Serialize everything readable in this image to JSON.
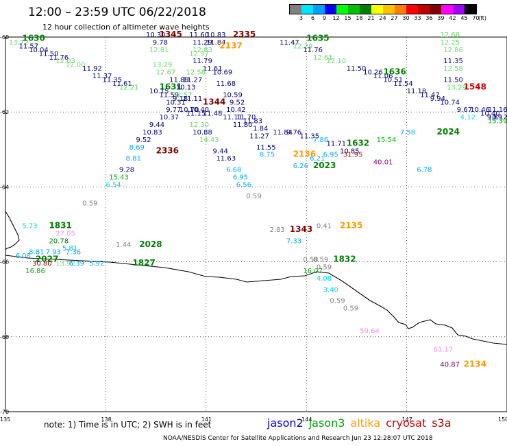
{
  "header": {
    "title": "12:00 – 23:59 UTC 06/22/2018",
    "subtitle": "12 hour collection of altimeter wave heights"
  },
  "legend": {
    "unit": "(ft)",
    "bins": [
      {
        "label": "3",
        "color": "#808080"
      },
      {
        "label": "6",
        "color": "#00e5ff"
      },
      {
        "label": "9",
        "color": "#00a0ff"
      },
      {
        "label": "12",
        "color": "#0000ff"
      },
      {
        "label": "15",
        "color": "#00ff00"
      },
      {
        "label": "18",
        "color": "#00c000"
      },
      {
        "label": "21",
        "color": "#008000"
      },
      {
        "label": "24",
        "color": "#ffff00"
      },
      {
        "label": "27",
        "color": "#ffc000"
      },
      {
        "label": "30",
        "color": "#ff8000"
      },
      {
        "label": "33",
        "color": "#ff0000"
      },
      {
        "label": "36",
        "color": "#c00000"
      },
      {
        "label": "39",
        "color": "#800000"
      },
      {
        "label": "42",
        "color": "#ff00ff"
      },
      {
        "label": "45",
        "color": "#a000ff"
      },
      {
        "label": "70",
        "color": "#000000"
      }
    ]
  },
  "axes": {
    "lon_ticks": [
      "135",
      "138",
      "141",
      "144",
      "147",
      "150"
    ],
    "lat_ticks": [
      "-60",
      "-62",
      "-64",
      "-66",
      "-68",
      "-70"
    ]
  },
  "note": "note: 1) Time is in UTC; 2) SWH is in feet",
  "satellites": [
    {
      "name": "jason2",
      "color": "#0000cc"
    },
    {
      "name": "jason3",
      "color": "#00a000"
    },
    {
      "name": "altika",
      "color": "#ff9900"
    },
    {
      "name": "cryosat",
      "color": "#cc0000"
    },
    {
      "name": "s3a",
      "color": "#990000"
    }
  ],
  "credit": "NOAA/NESDIS Center for Satellite Applications and Research    Jun 23 12:28:07 UTC 2018",
  "observations": [
    {
      "lon": 135.1,
      "lat": -60.2,
      "text": "13.72",
      "color": "#66dd66"
    },
    {
      "lon": 135.5,
      "lat": -60.1,
      "text": "1630",
      "color": "#008000",
      "bold": true
    },
    {
      "lon": 135.4,
      "lat": -60.3,
      "text": "11.57",
      "color": "#000080"
    },
    {
      "lon": 135.7,
      "lat": -60.4,
      "text": "10.04",
      "color": "#000080"
    },
    {
      "lon": 136.0,
      "lat": -60.5,
      "text": "11.50",
      "color": "#000080"
    },
    {
      "lon": 136.3,
      "lat": -60.6,
      "text": "11.76",
      "color": "#000080"
    },
    {
      "lon": 136.5,
      "lat": -60.7,
      "text": "12.03",
      "color": "#66dd66"
    },
    {
      "lon": 136.8,
      "lat": -60.8,
      "text": "12.00",
      "color": "#66dd66"
    },
    {
      "lon": 137.3,
      "lat": -60.9,
      "text": "11.92",
      "color": "#000080"
    },
    {
      "lon": 137.6,
      "lat": -61.1,
      "text": "11.37",
      "color": "#000080"
    },
    {
      "lon": 137.9,
      "lat": -61.2,
      "text": "11.35",
      "color": "#000080"
    },
    {
      "lon": 138.2,
      "lat": -61.3,
      "text": "11.61",
      "color": "#000080"
    },
    {
      "lon": 138.4,
      "lat": -61.4,
      "text": "12.21",
      "color": "#66dd66"
    },
    {
      "lon": 139.2,
      "lat": -60.0,
      "text": "10.30",
      "color": "#000080"
    },
    {
      "lon": 139.6,
      "lat": -60.0,
      "text": "1345",
      "color": "#800000",
      "bold": true
    },
    {
      "lon": 139.4,
      "lat": -60.2,
      "text": "9.78",
      "color": "#000080"
    },
    {
      "lon": 139.3,
      "lat": -60.4,
      "text": "12.81",
      "color": "#66dd66"
    },
    {
      "lon": 139.4,
      "lat": -60.8,
      "text": "13.29",
      "color": "#66dd66"
    },
    {
      "lon": 139.5,
      "lat": -61.0,
      "text": "12.67",
      "color": "#66dd66"
    },
    {
      "lon": 139.9,
      "lat": -61.2,
      "text": "11.89",
      "color": "#000080"
    },
    {
      "lon": 140.3,
      "lat": -61.2,
      "text": "11.27",
      "color": "#000080"
    },
    {
      "lon": 139.6,
      "lat": -61.4,
      "text": "1631",
      "color": "#008000",
      "bold": true
    },
    {
      "lon": 140.1,
      "lat": -61.4,
      "text": "10.13",
      "color": "#000080"
    },
    {
      "lon": 139.3,
      "lat": -61.5,
      "text": "10.15",
      "color": "#000080"
    },
    {
      "lon": 139.6,
      "lat": -61.6,
      "text": "11.59",
      "color": "#000080"
    },
    {
      "lon": 140.0,
      "lat": -61.6,
      "text": "12.57",
      "color": "#66dd66"
    },
    {
      "lon": 139.8,
      "lat": -61.8,
      "text": "10.31",
      "color": "#000080"
    },
    {
      "lon": 140.0,
      "lat": -61.7,
      "text": "9.18",
      "color": "#000080"
    },
    {
      "lon": 140.3,
      "lat": -61.7,
      "text": "11.11",
      "color": "#000080"
    },
    {
      "lon": 139.8,
      "lat": -62.0,
      "text": "9.77",
      "color": "#000080"
    },
    {
      "lon": 140.2,
      "lat": -62.0,
      "text": "10.70",
      "color": "#000080"
    },
    {
      "lon": 140.5,
      "lat": -62.0,
      "text": "10.40",
      "color": "#000080"
    },
    {
      "lon": 140.4,
      "lat": -62.1,
      "text": "11.15",
      "color": "#000080"
    },
    {
      "lon": 139.6,
      "lat": -62.2,
      "text": "10.37",
      "color": "#000080"
    },
    {
      "lon": 139.3,
      "lat": -62.4,
      "text": "9.44",
      "color": "#000080"
    },
    {
      "lon": 139.1,
      "lat": -62.6,
      "text": "10.83",
      "color": "#000080"
    },
    {
      "lon": 138.9,
      "lat": -62.8,
      "text": "9.52",
      "color": "#000080"
    },
    {
      "lon": 138.7,
      "lat": -63.0,
      "text": "8.69",
      "color": "#00aaff"
    },
    {
      "lon": 138.6,
      "lat": -63.3,
      "text": "8.81",
      "color": "#00aaff"
    },
    {
      "lon": 138.4,
      "lat": -63.6,
      "text": "9.28",
      "color": "#000080"
    },
    {
      "lon": 138.1,
      "lat": -63.8,
      "text": "15.43",
      "color": "#00b000"
    },
    {
      "lon": 138.0,
      "lat": -64.0,
      "text": "6.54",
      "color": "#00dddd"
    },
    {
      "lon": 139.5,
      "lat": -63.1,
      "text": "2336",
      "color": "#800000",
      "bold": true
    },
    {
      "lon": 140.5,
      "lat": -60.0,
      "text": "11.60",
      "color": "#000080"
    },
    {
      "lon": 141.0,
      "lat": -60.0,
      "text": "10.83",
      "color": "#000080"
    },
    {
      "lon": 141.8,
      "lat": -60.0,
      "text": "2335",
      "color": "#800000",
      "bold": true
    },
    {
      "lon": 140.6,
      "lat": -60.2,
      "text": "11.29",
      "color": "#000080"
    },
    {
      "lon": 141.0,
      "lat": -60.2,
      "text": "11.84",
      "color": "#000080"
    },
    {
      "lon": 141.4,
      "lat": -60.3,
      "text": "2137",
      "color": "#ff9900",
      "bold": true
    },
    {
      "lon": 140.6,
      "lat": -60.4,
      "text": "12.83",
      "color": "#66dd66"
    },
    {
      "lon": 140.5,
      "lat": -60.5,
      "text": "12.97",
      "color": "#66dd66"
    },
    {
      "lon": 140.6,
      "lat": -60.7,
      "text": "11.79",
      "color": "#000080"
    },
    {
      "lon": 140.9,
      "lat": -60.9,
      "text": "11.61",
      "color": "#000080"
    },
    {
      "lon": 140.4,
      "lat": -61.0,
      "text": "12.58",
      "color": "#66dd66"
    },
    {
      "lon": 141.2,
      "lat": -61.0,
      "text": "10.69",
      "color": "#000080"
    },
    {
      "lon": 141.3,
      "lat": -61.3,
      "text": "11.68",
      "color": "#000080"
    },
    {
      "lon": 141.5,
      "lat": -61.6,
      "text": "10.59",
      "color": "#000080"
    },
    {
      "lon": 140.9,
      "lat": -61.8,
      "text": "1344",
      "color": "#800000",
      "bold": true
    },
    {
      "lon": 141.7,
      "lat": -61.8,
      "text": "9.52",
      "color": "#000080"
    },
    {
      "lon": 141.6,
      "lat": -62.0,
      "text": "10.42",
      "color": "#000080"
    },
    {
      "lon": 140.9,
      "lat": -62.1,
      "text": "11.48",
      "color": "#000080"
    },
    {
      "lon": 141.5,
      "lat": -62.2,
      "text": "11.11",
      "color": "#000080"
    },
    {
      "lon": 141.9,
      "lat": -62.2,
      "text": "11.70",
      "color": "#000080"
    },
    {
      "lon": 142.1,
      "lat": -62.3,
      "text": "11.83",
      "color": "#000080"
    },
    {
      "lon": 141.8,
      "lat": -62.4,
      "text": "11.80",
      "color": "#000080"
    },
    {
      "lon": 140.5,
      "lat": -62.4,
      "text": "12.30",
      "color": "#66dd66"
    },
    {
      "lon": 140.6,
      "lat": -62.6,
      "text": "10.88",
      "color": "#000080"
    },
    {
      "lon": 140.8,
      "lat": -62.8,
      "text": "14.43",
      "color": "#66dd66"
    },
    {
      "lon": 141.2,
      "lat": -63.1,
      "text": "9.44",
      "color": "#000080"
    },
    {
      "lon": 141.3,
      "lat": -63.3,
      "text": "11.63",
      "color": "#000080"
    },
    {
      "lon": 141.6,
      "lat": -63.6,
      "text": "6.68",
      "color": "#00aaff"
    },
    {
      "lon": 141.8,
      "lat": -63.8,
      "text": "6.95",
      "color": "#00aaff"
    },
    {
      "lon": 141.9,
      "lat": -64.0,
      "text": "6.56",
      "color": "#00aaff"
    },
    {
      "lon": 142.2,
      "lat": -64.3,
      "text": "0.59",
      "color": "#808080"
    },
    {
      "lon": 142.4,
      "lat": -62.5,
      "text": "1.84",
      "color": "#000080"
    },
    {
      "lon": 142.3,
      "lat": -62.7,
      "text": "11.27",
      "color": "#000080"
    },
    {
      "lon": 142.5,
      "lat": -63.0,
      "text": "11.55",
      "color": "#000080"
    },
    {
      "lon": 142.6,
      "lat": -63.2,
      "text": "8.75",
      "color": "#00aaff"
    },
    {
      "lon": 143.0,
      "lat": -62.6,
      "text": "11.84",
      "color": "#000080"
    },
    {
      "lon": 143.4,
      "lat": -62.6,
      "text": "9.76",
      "color": "#000080"
    },
    {
      "lon": 143.8,
      "lat": -62.7,
      "text": "11.35",
      "color": "#000080"
    },
    {
      "lon": 144.2,
      "lat": -62.8,
      "text": "7.86",
      "color": "#00aaff"
    },
    {
      "lon": 144.6,
      "lat": -62.9,
      "text": "11.71",
      "color": "#000080"
    },
    {
      "lon": 143.6,
      "lat": -63.2,
      "text": "2136",
      "color": "#ff9900",
      "bold": true
    },
    {
      "lon": 144.1,
      "lat": -63.3,
      "text": "6.21",
      "color": "#00aaff"
    },
    {
      "lon": 144.5,
      "lat": -63.2,
      "text": "6.95",
      "color": "#00aaff"
    },
    {
      "lon": 143.6,
      "lat": -63.5,
      "text": "6.26",
      "color": "#00aaff"
    },
    {
      "lon": 144.2,
      "lat": -63.5,
      "text": "2023",
      "color": "#008000",
      "bold": true
    },
    {
      "lon": 145.2,
      "lat": -62.9,
      "text": "1632",
      "color": "#008000",
      "bold": true
    },
    {
      "lon": 145.0,
      "lat": -63.1,
      "text": "10.85",
      "color": "#000080"
    },
    {
      "lon": 145.1,
      "lat": -63.2,
      "text": "31.95",
      "color": "#cc0000"
    },
    {
      "lon": 146.1,
      "lat": -62.8,
      "text": "15.54",
      "color": "#00b000"
    },
    {
      "lon": 146.0,
      "lat": -63.4,
      "text": "40.01",
      "color": "#800080"
    },
    {
      "lon": 146.8,
      "lat": -62.6,
      "text": "7.58",
      "color": "#00aaff"
    },
    {
      "lon": 147.3,
      "lat": -63.6,
      "text": "6.78",
      "color": "#00aaff"
    },
    {
      "lon": 147.9,
      "lat": -62.6,
      "text": "2024",
      "color": "#008000",
      "bold": true
    },
    {
      "lon": 143.2,
      "lat": -60.2,
      "text": "11.47",
      "color": "#000080"
    },
    {
      "lon": 143.6,
      "lat": -60.3,
      "text": "12.29",
      "color": "#66dd66"
    },
    {
      "lon": 144.0,
      "lat": -60.1,
      "text": "1635",
      "color": "#008000",
      "bold": true
    },
    {
      "lon": 143.9,
      "lat": -60.4,
      "text": "11.76",
      "color": "#000080"
    },
    {
      "lon": 144.2,
      "lat": -60.6,
      "text": "12.61",
      "color": "#66dd66"
    },
    {
      "lon": 144.6,
      "lat": -60.7,
      "text": "12.10",
      "color": "#66dd66"
    },
    {
      "lon": 145.2,
      "lat": -60.9,
      "text": "11.50",
      "color": "#000080"
    },
    {
      "lon": 145.7,
      "lat": -61.0,
      "text": "10.26",
      "color": "#000080"
    },
    {
      "lon": 146.0,
      "lat": -61.1,
      "text": "11.06",
      "color": "#000080"
    },
    {
      "lon": 146.3,
      "lat": -61.0,
      "text": "1636",
      "color": "#008000",
      "bold": true
    },
    {
      "lon": 146.3,
      "lat": -61.2,
      "text": "10.51",
      "color": "#000080"
    },
    {
      "lon": 146.6,
      "lat": -61.3,
      "text": "11.54",
      "color": "#000080"
    },
    {
      "lon": 147.0,
      "lat": -61.5,
      "text": "11.18",
      "color": "#000080"
    },
    {
      "lon": 147.4,
      "lat": -61.6,
      "text": "11.47",
      "color": "#000080"
    },
    {
      "lon": 147.7,
      "lat": -61.7,
      "text": "9.94",
      "color": "#000080"
    },
    {
      "lon": 148.0,
      "lat": -61.8,
      "text": "10.74",
      "color": "#000080"
    },
    {
      "lon": 148.5,
      "lat": -62.0,
      "text": "9.67",
      "color": "#000080"
    },
    {
      "lon": 148.6,
      "lat": -62.2,
      "text": "4.12",
      "color": "#00dddd"
    },
    {
      "lon": 148.9,
      "lat": -62.0,
      "text": "10.46",
      "color": "#000080"
    },
    {
      "lon": 149.2,
      "lat": -62.1,
      "text": "10.40",
      "color": "#000080"
    },
    {
      "lon": 149.4,
      "lat": -62.2,
      "text": "9.89",
      "color": "#000080"
    },
    {
      "lon": 149.6,
      "lat": -62.2,
      "text": "10.12",
      "color": "#000080"
    },
    {
      "lon": 149.7,
      "lat": -62.0,
      "text": "11.16",
      "color": "#000080"
    },
    {
      "lon": 149.8,
      "lat": -62.3,
      "text": "15.39",
      "color": "#00b000"
    },
    {
      "lon": 148.7,
      "lat": -61.4,
      "text": "1548",
      "color": "#cc0000",
      "bold": true
    },
    {
      "lon": 148.0,
      "lat": -60.0,
      "text": "12.68",
      "color": "#66dd66"
    },
    {
      "lon": 148.0,
      "lat": -60.2,
      "text": "12.25",
      "color": "#66dd66"
    },
    {
      "lon": 148.1,
      "lat": -60.4,
      "text": "12.86",
      "color": "#66dd66"
    },
    {
      "lon": 148.1,
      "lat": -60.7,
      "text": "11.35",
      "color": "#000080"
    },
    {
      "lon": 148.1,
      "lat": -60.9,
      "text": "12.58",
      "color": "#66dd66"
    },
    {
      "lon": 148.1,
      "lat": -61.2,
      "text": "11.50",
      "color": "#000080"
    },
    {
      "lon": 148.2,
      "lat": -61.4,
      "text": "13.29",
      "color": "#66dd66"
    },
    {
      "lon": 137.3,
      "lat": -64.5,
      "text": "0.59",
      "color": "#808080"
    },
    {
      "lon": 135.5,
      "lat": -65.1,
      "text": "5.73",
      "color": "#00dddd"
    },
    {
      "lon": 136.3,
      "lat": -65.1,
      "text": "1831",
      "color": "#008000",
      "bold": true
    },
    {
      "lon": 136.5,
      "lat": -65.3,
      "text": "27.05",
      "color": "#ff88ff"
    },
    {
      "lon": 136.3,
      "lat": -65.5,
      "text": "20.78",
      "color": "#008000"
    },
    {
      "lon": 136.8,
      "lat": -65.8,
      "text": "7.36",
      "color": "#00aaff"
    },
    {
      "lon": 136.7,
      "lat": -65.7,
      "text": "5.81",
      "color": "#00aaff"
    },
    {
      "lon": 136.2,
      "lat": -65.8,
      "text": "7.93",
      "color": "#00aaff"
    },
    {
      "lon": 135.7,
      "lat": -65.8,
      "text": "8.81",
      "color": "#00aaff"
    },
    {
      "lon": 135.3,
      "lat": -65.9,
      "text": "6.08",
      "color": "#00aaff"
    },
    {
      "lon": 135.9,
      "lat": -66.0,
      "text": "2027",
      "color": "#008000",
      "bold": true
    },
    {
      "lon": 135.8,
      "lat": -66.1,
      "text": "30.80",
      "color": "#800000"
    },
    {
      "lon": 136.5,
      "lat": -66.1,
      "text": "13.92",
      "color": "#66dd66"
    },
    {
      "lon": 136.9,
      "lat": -66.1,
      "text": "6.39",
      "color": "#00aaff"
    },
    {
      "lon": 135.6,
      "lat": -66.3,
      "text": "16.86",
      "color": "#00b000"
    },
    {
      "lon": 137.5,
      "lat": -66.1,
      "text": "5.92",
      "color": "#00aaff"
    },
    {
      "lon": 138.3,
      "lat": -65.6,
      "text": "1.44",
      "color": "#808080"
    },
    {
      "lon": 139.0,
      "lat": -65.6,
      "text": "2028",
      "color": "#008000",
      "bold": true
    },
    {
      "lon": 138.8,
      "lat": -66.1,
      "text": "1827",
      "color": "#008000",
      "bold": true
    },
    {
      "lon": 142.9,
      "lat": -65.2,
      "text": "2.83",
      "color": "#808080"
    },
    {
      "lon": 143.5,
      "lat": -65.2,
      "text": "1343",
      "color": "#800000",
      "bold": true
    },
    {
      "lon": 144.3,
      "lat": -65.1,
      "text": "0.41",
      "color": "#808080"
    },
    {
      "lon": 145.0,
      "lat": -65.1,
      "text": "2135",
      "color": "#ff9900",
      "bold": true
    },
    {
      "lon": 143.4,
      "lat": -65.5,
      "text": "7.33",
      "color": "#00aaff"
    },
    {
      "lon": 143.9,
      "lat": -66.0,
      "text": "0.58",
      "color": "#808080"
    },
    {
      "lon": 144.2,
      "lat": -66.0,
      "text": "0.59",
      "color": "#808080"
    },
    {
      "lon": 144.3,
      "lat": -66.2,
      "text": "0.59",
      "color": "#808080"
    },
    {
      "lon": 144.8,
      "lat": -66.0,
      "text": "1832",
      "color": "#008000",
      "bold": true
    },
    {
      "lon": 143.9,
      "lat": -66.3,
      "text": "16.07",
      "color": "#00b000"
    },
    {
      "lon": 144.3,
      "lat": -66.5,
      "text": "4.08",
      "color": "#00dddd"
    },
    {
      "lon": 144.5,
      "lat": -66.8,
      "text": "3.40",
      "color": "#00dddd"
    },
    {
      "lon": 144.7,
      "lat": -67.1,
      "text": "0.59",
      "color": "#808080"
    },
    {
      "lon": 145.1,
      "lat": -67.3,
      "text": "0.59",
      "color": "#808080"
    },
    {
      "lon": 145.6,
      "lat": -67.9,
      "text": "59.64",
      "color": "#ff88ff"
    },
    {
      "lon": 147.8,
      "lat": -68.4,
      "text": "61.17",
      "color": "#ff88ff"
    },
    {
      "lon": 148.0,
      "lat": -68.8,
      "text": "40.87",
      "color": "#800080"
    },
    {
      "lon": 148.7,
      "lat": -68.8,
      "text": "2134",
      "color": "#ff9900",
      "bold": true
    }
  ]
}
